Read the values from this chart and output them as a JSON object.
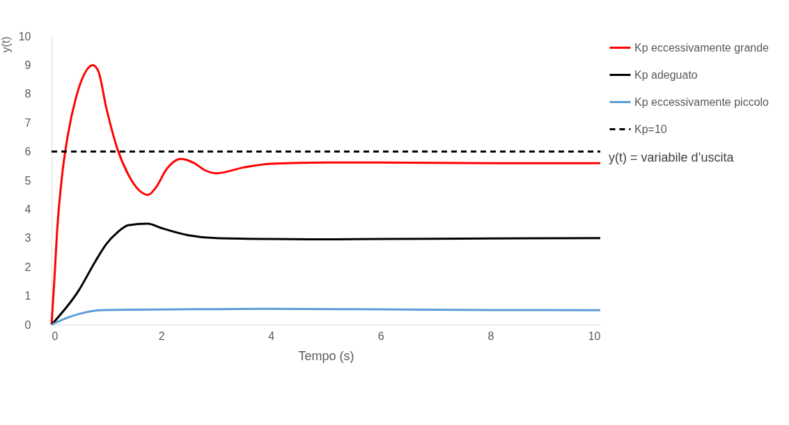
{
  "chart_data": {
    "type": "line",
    "xlabel": "Tempo (s)",
    "ylabel": "y(t)",
    "xlim": [
      0,
      10
    ],
    "ylim": [
      0,
      10
    ],
    "xticks": [
      0,
      2,
      4,
      6,
      8,
      10
    ],
    "yticks": [
      0,
      1,
      2,
      3,
      4,
      5,
      6,
      7,
      8,
      9,
      10
    ],
    "grid": false,
    "legend": "top right",
    "marker": "none",
    "annotations": [
      "y(t) = variabile d’uscita"
    ],
    "series": [
      {
        "name": "Kp eccessivamente grande",
        "color": "#ff0000",
        "line_style": "solid",
        "x": [
          0,
          0.05,
          0.1,
          0.2,
          0.3,
          0.45,
          0.6,
          0.75,
          0.85,
          1.0,
          1.2,
          1.4,
          1.6,
          1.76,
          1.9,
          2.1,
          2.36,
          2.6,
          2.8,
          3.0,
          3.5,
          4,
          5,
          6,
          8,
          10
        ],
        "values": [
          0,
          1.5,
          3.2,
          5.3,
          6.6,
          7.9,
          8.7,
          9.0,
          8.8,
          7.5,
          6.1,
          5.2,
          4.65,
          4.5,
          4.75,
          5.4,
          5.75,
          5.6,
          5.35,
          5.25,
          5.45,
          5.58,
          5.62,
          5.62,
          5.6,
          5.6
        ]
      },
      {
        "name": "Kp adeguato",
        "color": "#000000",
        "line_style": "solid",
        "x": [
          0,
          0.5,
          0.8,
          1.0,
          1.2,
          1.4,
          1.75,
          2.0,
          2.5,
          3,
          4,
          5,
          6,
          8,
          10
        ],
        "values": [
          0,
          1.2,
          2.2,
          2.8,
          3.2,
          3.45,
          3.5,
          3.35,
          3.1,
          3.0,
          2.97,
          2.96,
          2.97,
          2.99,
          3.0
        ]
      },
      {
        "name": "Kp eccessivamente piccolo",
        "color": "#5b9bd5",
        "line_style": "solid",
        "x": [
          0,
          0.3,
          0.6,
          0.9,
          1.5,
          3,
          4,
          6,
          8,
          10
        ],
        "values": [
          0,
          0.25,
          0.42,
          0.5,
          0.52,
          0.54,
          0.55,
          0.53,
          0.51,
          0.5
        ]
      },
      {
        "name": "Kp=10",
        "color": "#000000",
        "line_style": "dashed",
        "x": [
          0,
          10
        ],
        "values": [
          6,
          6
        ]
      }
    ]
  }
}
